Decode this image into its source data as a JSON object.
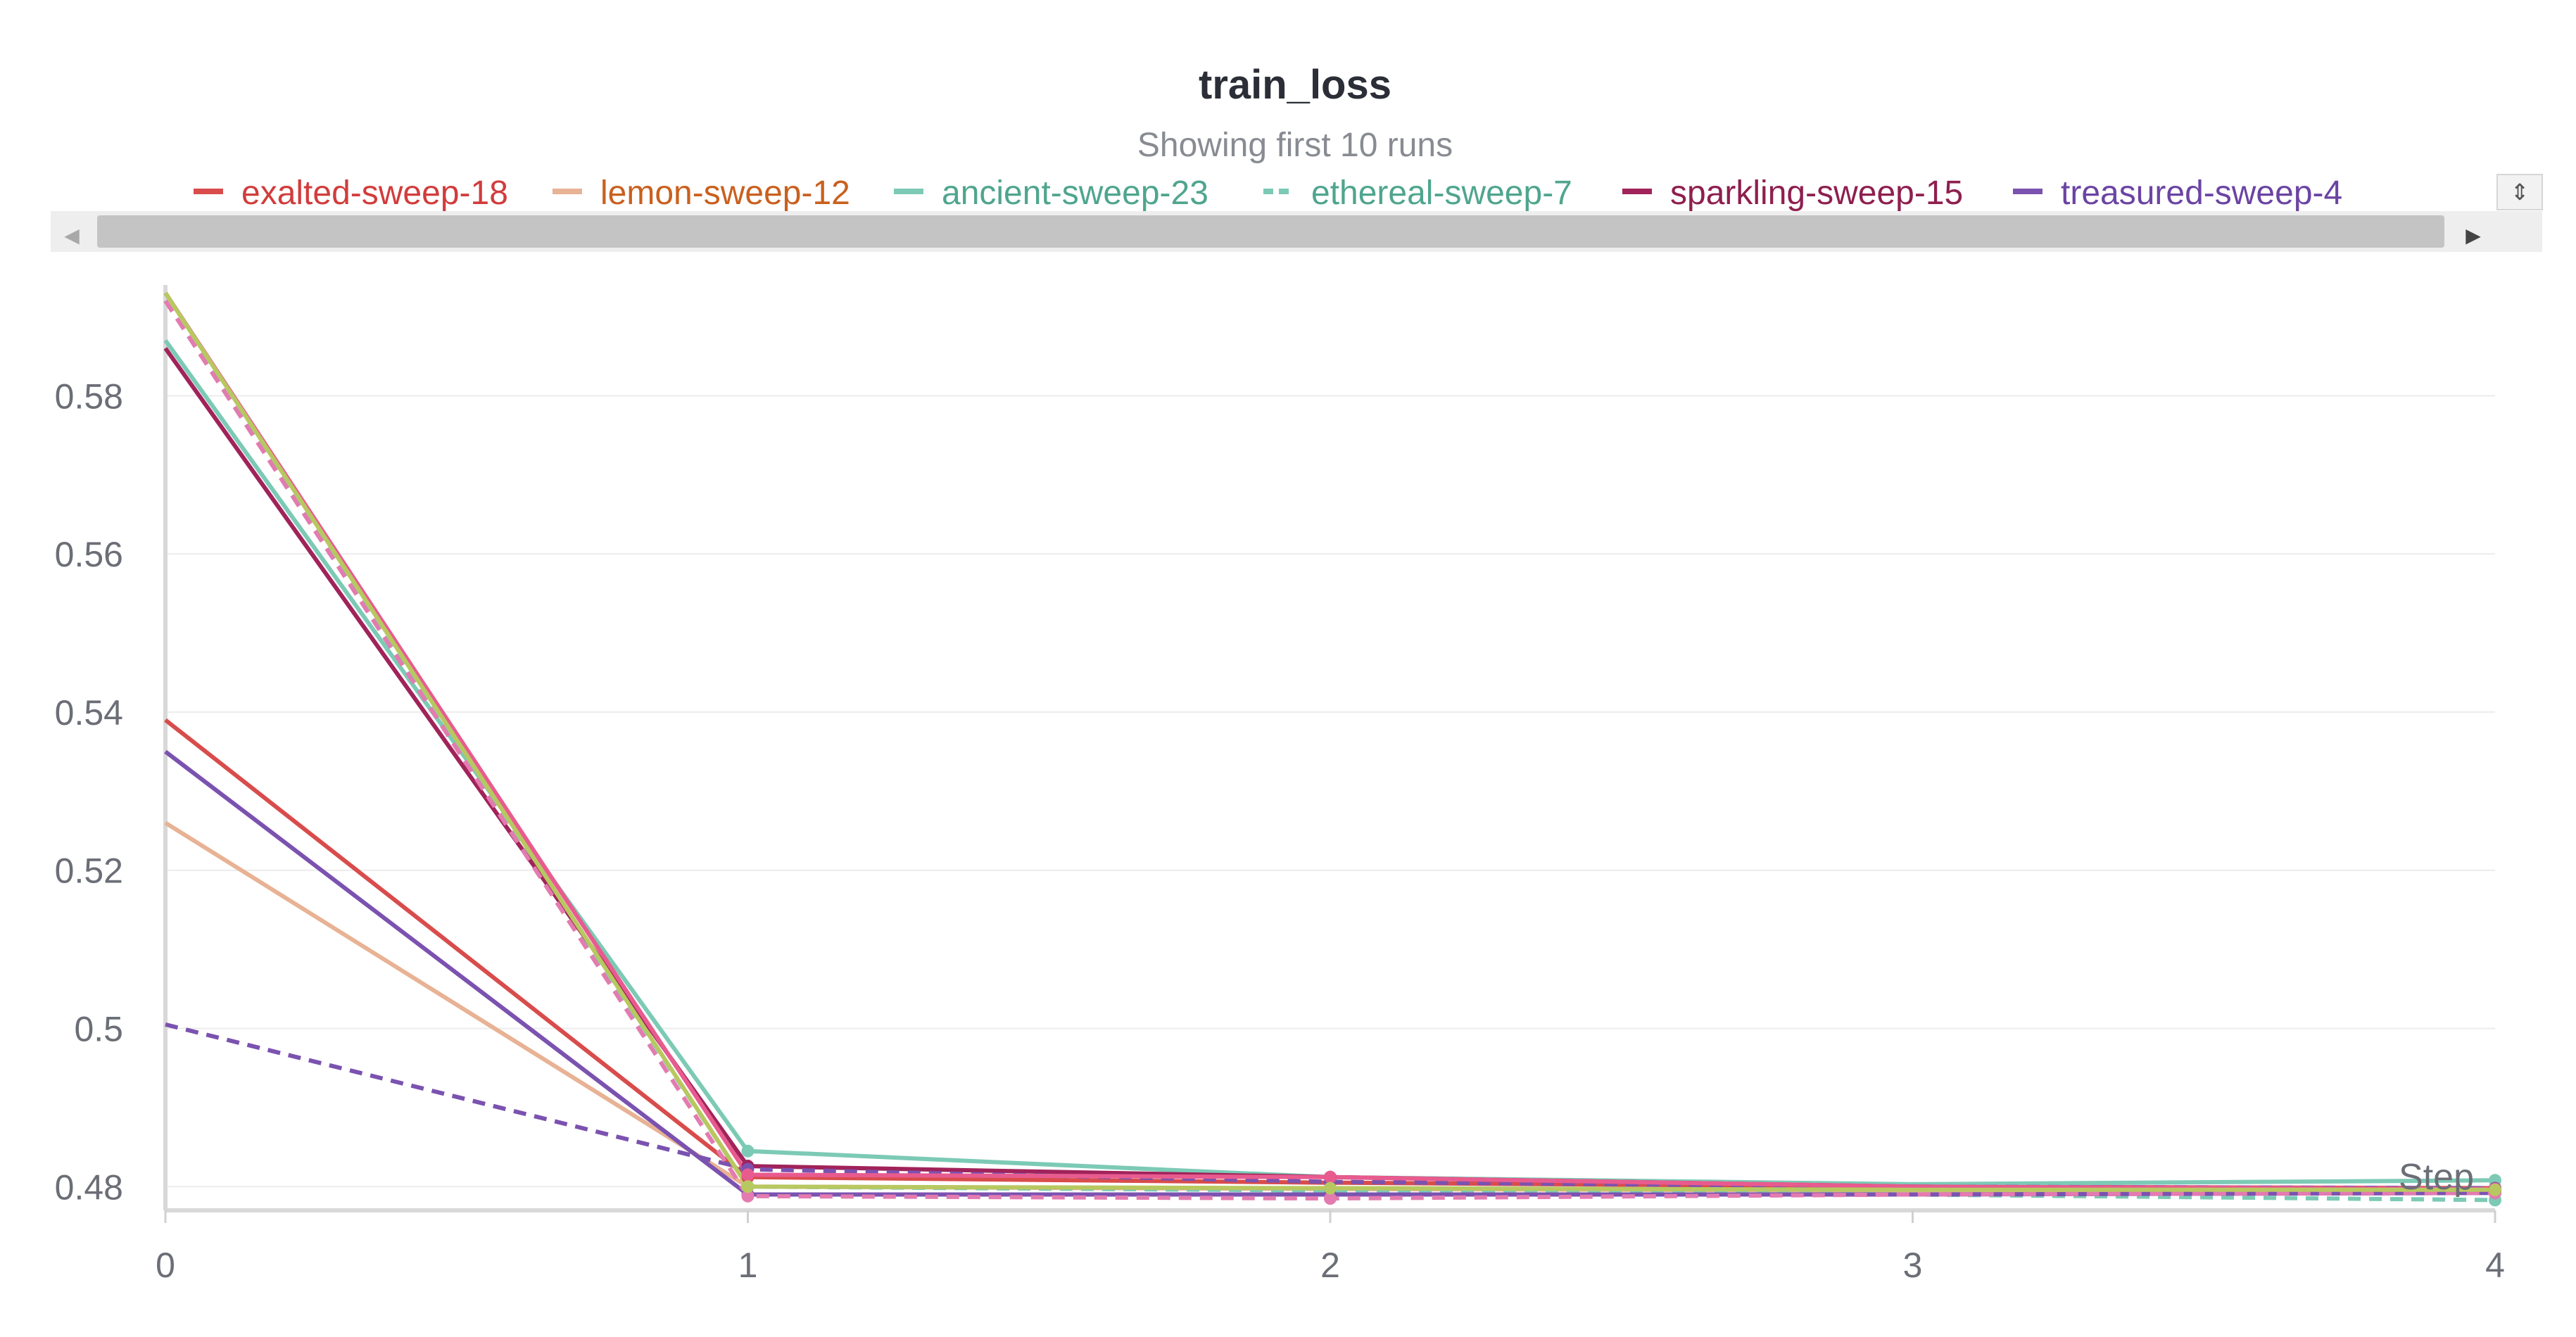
{
  "chart_data": {
    "type": "line",
    "title": "train_loss",
    "subtitle": "Showing first 10 runs",
    "xlabel": "Step",
    "ylabel": "",
    "xlim": [
      0,
      4
    ],
    "ylim": [
      0.477,
      0.594
    ],
    "x_ticks": [
      "0",
      "1",
      "2",
      "3",
      "4"
    ],
    "y_ticks": [
      "0.48",
      "0.5",
      "0.52",
      "0.54",
      "0.56",
      "0.58"
    ],
    "grid": true,
    "legend_position": "top",
    "x": [
      0,
      1,
      2,
      3,
      4
    ],
    "series": [
      {
        "name": "exalted-sweep-18",
        "color": "#d94c4c",
        "dashed": false,
        "values": [
          0.539,
          0.4812,
          0.4805,
          0.48,
          0.4798
        ]
      },
      {
        "name": "lemon-sweep-12",
        "color": "#e8b294",
        "dashed": false,
        "values": [
          0.526,
          0.48,
          0.4797,
          0.4795,
          0.4793
        ]
      },
      {
        "name": "ancient-sweep-23",
        "color": "#7ccab5",
        "dashed": false,
        "values": [
          0.587,
          0.4845,
          0.4812,
          0.4803,
          0.4808
        ]
      },
      {
        "name": "ethereal-sweep-7",
        "color": "#7ccab5",
        "dashed": true,
        "values": [
          0.592,
          0.48,
          0.4795,
          0.479,
          0.4783
        ]
      },
      {
        "name": "sparkling-sweep-15",
        "color": "#a0235a",
        "dashed": false,
        "values": [
          0.586,
          0.4826,
          0.4812,
          0.48,
          0.4795
        ]
      },
      {
        "name": "treasured-sweep-4",
        "color": "#7b52b0",
        "dashed": false,
        "values": [
          0.535,
          0.479,
          0.479,
          0.479,
          0.4792
        ]
      },
      {
        "color": "#7b52b0",
        "dashed": true,
        "values": [
          0.5005,
          0.4822,
          0.4806,
          0.48,
          0.4798
        ]
      },
      {
        "color": "#e85b8f",
        "dashed": false,
        "values": [
          0.593,
          0.4815,
          0.4812,
          0.48,
          0.4797
        ]
      },
      {
        "color": "#e37bb0",
        "dashed": true,
        "values": [
          0.592,
          0.4788,
          0.4785,
          0.479,
          0.4792
        ]
      },
      {
        "color": "#b8c860",
        "dashed": false,
        "values": [
          0.593,
          0.48,
          0.4798,
          0.4796,
          0.4796
        ]
      }
    ]
  },
  "legend_scroll": {
    "left_arrow": "◀",
    "right_arrow": "▶",
    "updown_arrow": "⇕"
  }
}
